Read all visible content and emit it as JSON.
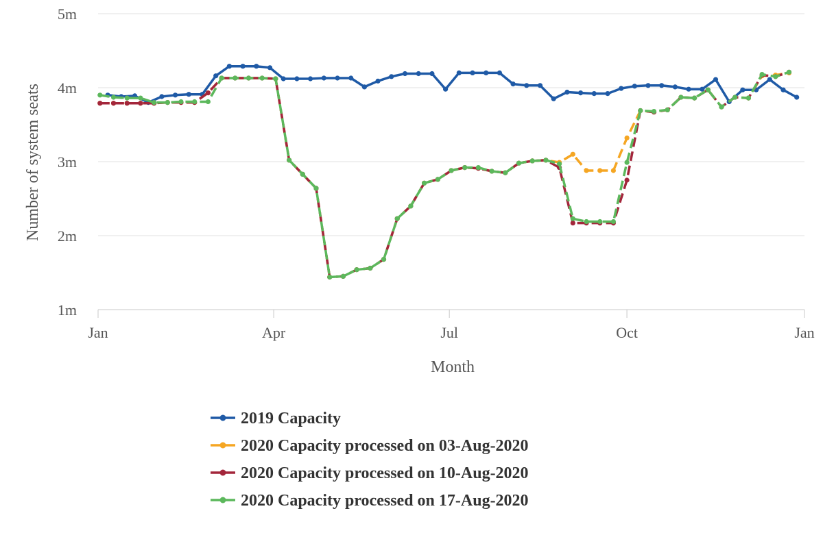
{
  "chart_data": {
    "type": "line",
    "title": "",
    "xlabel": "Month",
    "ylabel": "Number of system seats",
    "ylim": [
      1000000,
      5000000
    ],
    "yticks": [
      {
        "value": 1000000,
        "label": "1m"
      },
      {
        "value": 2000000,
        "label": "2m"
      },
      {
        "value": 3000000,
        "label": "3m"
      },
      {
        "value": 4000000,
        "label": "4m"
      },
      {
        "value": 5000000,
        "label": "5m"
      }
    ],
    "xlim": [
      "2020-01-01",
      "2021-01-01"
    ],
    "xticks": [
      {
        "value": "2020-01-01",
        "label": "Jan"
      },
      {
        "value": "2020-04-01",
        "label": "Apr"
      },
      {
        "value": "2020-07-01",
        "label": "Jul"
      },
      {
        "value": "2020-10-01",
        "label": "Oct"
      },
      {
        "value": "2021-01-01",
        "label": "Jan"
      }
    ],
    "grid": "horizontal",
    "legend": "bottom",
    "series": [
      {
        "name": "2019 Capacity",
        "color": "#1f5aa6",
        "dash": false,
        "x": [
          "2020-01-06",
          "2020-01-13",
          "2020-01-20",
          "2020-01-27",
          "2020-02-03",
          "2020-02-10",
          "2020-02-17",
          "2020-02-24",
          "2020-03-02",
          "2020-03-09",
          "2020-03-16",
          "2020-03-23",
          "2020-03-30",
          "2020-04-06",
          "2020-04-13",
          "2020-04-20",
          "2020-04-27",
          "2020-05-04",
          "2020-05-11",
          "2020-05-18",
          "2020-05-25",
          "2020-06-01",
          "2020-06-08",
          "2020-06-15",
          "2020-06-22",
          "2020-06-29",
          "2020-07-06",
          "2020-07-13",
          "2020-07-20",
          "2020-07-27",
          "2020-08-03",
          "2020-08-10",
          "2020-08-17",
          "2020-08-24",
          "2020-08-31",
          "2020-09-07",
          "2020-09-14",
          "2020-09-21",
          "2020-09-28",
          "2020-10-05",
          "2020-10-12",
          "2020-10-19",
          "2020-10-26",
          "2020-11-02",
          "2020-11-09",
          "2020-11-16",
          "2020-11-23",
          "2020-11-30",
          "2020-12-07",
          "2020-12-14",
          "2020-12-21",
          "2020-12-28"
        ],
        "y": [
          3900000,
          3880000,
          3890000,
          3800000,
          3880000,
          3900000,
          3910000,
          3910000,
          4160000,
          4290000,
          4290000,
          4290000,
          4270000,
          4120000,
          4120000,
          4120000,
          4130000,
          4130000,
          4130000,
          4010000,
          4090000,
          4150000,
          4190000,
          4190000,
          4190000,
          3980000,
          4200000,
          4200000,
          4200000,
          4200000,
          4050000,
          4030000,
          4030000,
          3850000,
          3940000,
          3930000,
          3920000,
          3920000,
          3990000,
          4020000,
          4030000,
          4030000,
          4010000,
          3980000,
          3980000,
          4110000,
          3810000,
          3970000,
          3970000,
          4110000,
          3970000,
          3870000
        ]
      },
      {
        "name": "2020 Capacity processed on 03-Aug-2020",
        "color": "#f5a623",
        "dash": true,
        "x": [
          "2020-01-02",
          "2020-01-09",
          "2020-01-16",
          "2020-01-23",
          "2020-01-30",
          "2020-02-06",
          "2020-02-13",
          "2020-02-20",
          "2020-02-27",
          "2020-03-05",
          "2020-03-12",
          "2020-03-19",
          "2020-03-26",
          "2020-04-02",
          "2020-04-09",
          "2020-04-16",
          "2020-04-23",
          "2020-04-30",
          "2020-05-07",
          "2020-05-14",
          "2020-05-21",
          "2020-05-28",
          "2020-06-04",
          "2020-06-11",
          "2020-06-18",
          "2020-06-25",
          "2020-07-02",
          "2020-07-09",
          "2020-07-16",
          "2020-07-23",
          "2020-07-30",
          "2020-08-06",
          "2020-08-13",
          "2020-08-20",
          "2020-08-27",
          "2020-09-03",
          "2020-09-10",
          "2020-09-17",
          "2020-09-24",
          "2020-10-01",
          "2020-10-08",
          "2020-10-15",
          "2020-10-22",
          "2020-10-29",
          "2020-11-05",
          "2020-11-12",
          "2020-11-19",
          "2020-11-26",
          "2020-12-03",
          "2020-12-10",
          "2020-12-17",
          "2020-12-24"
        ],
        "y": [
          3790000,
          3790000,
          3790000,
          3790000,
          3790000,
          3800000,
          3800000,
          3800000,
          3930000,
          4130000,
          4130000,
          4130000,
          4130000,
          4120000,
          3020000,
          2830000,
          2640000,
          1440000,
          1450000,
          1540000,
          1560000,
          1680000,
          2230000,
          2400000,
          2710000,
          2760000,
          2880000,
          2920000,
          2910000,
          2870000,
          2850000,
          2980000,
          3010000,
          3020000,
          2990000,
          3100000,
          2880000,
          2880000,
          2880000,
          3320000,
          3690000,
          3670000,
          3700000,
          3870000,
          3860000,
          3970000,
          3740000,
          3870000,
          3860000,
          4160000,
          4170000,
          4200000
        ]
      },
      {
        "name": "2020 Capacity processed on 10-Aug-2020",
        "color": "#a3263b",
        "dash": true,
        "x": [
          "2020-01-02",
          "2020-01-09",
          "2020-01-16",
          "2020-01-23",
          "2020-01-30",
          "2020-02-06",
          "2020-02-13",
          "2020-02-20",
          "2020-02-27",
          "2020-03-05",
          "2020-03-12",
          "2020-03-19",
          "2020-03-26",
          "2020-04-02",
          "2020-04-09",
          "2020-04-16",
          "2020-04-23",
          "2020-04-30",
          "2020-05-07",
          "2020-05-14",
          "2020-05-21",
          "2020-05-28",
          "2020-06-04",
          "2020-06-11",
          "2020-06-18",
          "2020-06-25",
          "2020-07-02",
          "2020-07-09",
          "2020-07-16",
          "2020-07-23",
          "2020-07-30",
          "2020-08-06",
          "2020-08-13",
          "2020-08-20",
          "2020-08-27",
          "2020-09-03",
          "2020-09-10",
          "2020-09-17",
          "2020-09-24",
          "2020-10-01",
          "2020-10-08",
          "2020-10-15",
          "2020-10-22",
          "2020-10-29",
          "2020-11-05",
          "2020-11-12",
          "2020-11-19",
          "2020-11-26",
          "2020-12-03",
          "2020-12-10",
          "2020-12-17",
          "2020-12-24"
        ],
        "y": [
          3790000,
          3790000,
          3790000,
          3790000,
          3790000,
          3800000,
          3800000,
          3800000,
          3930000,
          4130000,
          4130000,
          4130000,
          4130000,
          4120000,
          3020000,
          2830000,
          2640000,
          1440000,
          1450000,
          1540000,
          1560000,
          1680000,
          2230000,
          2400000,
          2710000,
          2760000,
          2880000,
          2920000,
          2910000,
          2870000,
          2850000,
          2980000,
          3010000,
          3020000,
          2920000,
          2170000,
          2170000,
          2170000,
          2170000,
          2750000,
          3690000,
          3670000,
          3700000,
          3870000,
          3860000,
          3970000,
          3740000,
          3870000,
          3860000,
          4170000,
          4150000,
          4210000
        ]
      },
      {
        "name": "2020 Capacity processed on 17-Aug-2020",
        "color": "#5cb85c",
        "dash": true,
        "x": [
          "2020-01-02",
          "2020-01-09",
          "2020-01-16",
          "2020-01-23",
          "2020-01-30",
          "2020-02-06",
          "2020-02-13",
          "2020-02-20",
          "2020-02-27",
          "2020-03-05",
          "2020-03-12",
          "2020-03-19",
          "2020-03-26",
          "2020-04-02",
          "2020-04-09",
          "2020-04-16",
          "2020-04-23",
          "2020-04-30",
          "2020-05-07",
          "2020-05-14",
          "2020-05-21",
          "2020-05-28",
          "2020-06-04",
          "2020-06-11",
          "2020-06-18",
          "2020-06-25",
          "2020-07-02",
          "2020-07-09",
          "2020-07-16",
          "2020-07-23",
          "2020-07-30",
          "2020-08-06",
          "2020-08-13",
          "2020-08-20",
          "2020-08-27",
          "2020-09-03",
          "2020-09-10",
          "2020-09-17",
          "2020-09-24",
          "2020-10-01",
          "2020-10-08",
          "2020-10-15",
          "2020-10-22",
          "2020-10-29",
          "2020-11-05",
          "2020-11-12",
          "2020-11-19",
          "2020-11-26",
          "2020-12-03",
          "2020-12-10",
          "2020-12-17",
          "2020-12-24"
        ],
        "y": [
          3900000,
          3870000,
          3860000,
          3860000,
          3800000,
          3800000,
          3810000,
          3810000,
          3810000,
          4130000,
          4130000,
          4130000,
          4130000,
          4120000,
          3020000,
          2830000,
          2640000,
          1440000,
          1450000,
          1540000,
          1560000,
          1680000,
          2230000,
          2400000,
          2710000,
          2760000,
          2880000,
          2920000,
          2920000,
          2870000,
          2850000,
          2980000,
          3010000,
          3020000,
          2970000,
          2230000,
          2190000,
          2190000,
          2190000,
          2990000,
          3690000,
          3680000,
          3700000,
          3870000,
          3860000,
          3970000,
          3740000,
          3870000,
          3860000,
          4180000,
          4150000,
          4210000
        ]
      }
    ]
  }
}
